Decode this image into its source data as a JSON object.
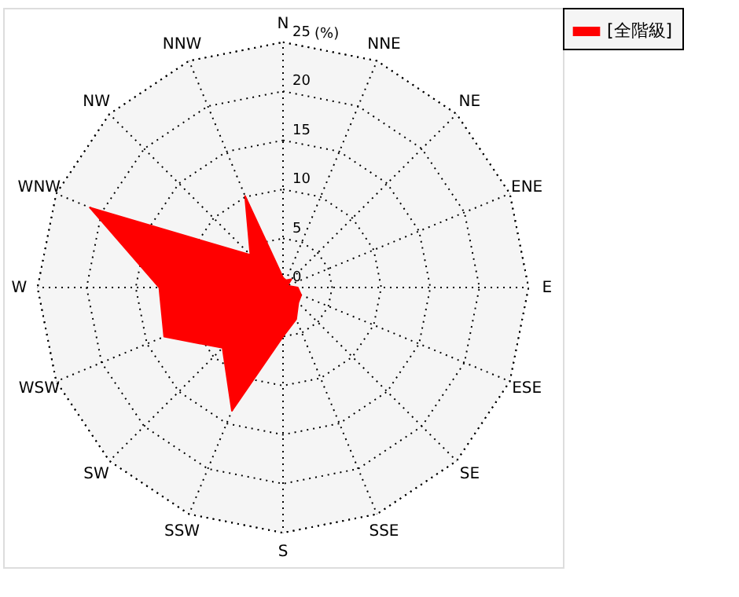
{
  "chart_data": {
    "type": "radar",
    "categories": [
      "N",
      "NNE",
      "NE",
      "ENE",
      "E",
      "ESE",
      "SE",
      "SSE",
      "S",
      "SSW",
      "SW",
      "WSW",
      "W",
      "WNW",
      "NW",
      "NNW"
    ],
    "series": [
      {
        "name": "[全階級]",
        "color": "#ff0000",
        "values": [
          1,
          0.8,
          1.2,
          0.5,
          1.5,
          2,
          2.2,
          3.5,
          5,
          13.6,
          8.7,
          13.1,
          12.6,
          21.3,
          4.7,
          10.1
        ]
      }
    ],
    "ylim": [
      0,
      25
    ],
    "yticks": [
      0,
      5,
      10,
      15,
      20,
      25
    ],
    "ylabel": "(%)",
    "legend": "top right",
    "grid": true,
    "line_style": "dotted"
  }
}
